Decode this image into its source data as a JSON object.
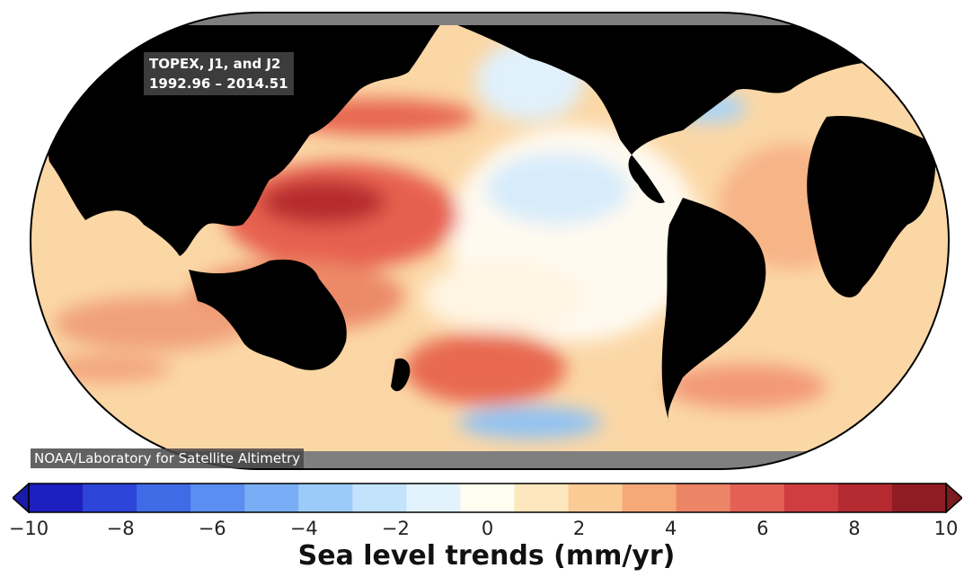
{
  "map": {
    "projection": "robinson-pacific-centered",
    "land_color": "#000000",
    "polar_cap_color": "#7f7f7f",
    "dataset_label_line1": "TOPEX, J1, and J2",
    "dataset_label_line2": "1992.96 – 2014.51",
    "credit": "NOAA/Laboratory for Satellite Altimetry"
  },
  "colorbar": {
    "title": "Sea level trends (mm/yr)",
    "ticks": [
      "−10",
      "−8",
      "−6",
      "−4",
      "−2",
      "0",
      "2",
      "4",
      "6",
      "8",
      "10"
    ],
    "tick_values": [
      -10,
      -8,
      -6,
      -4,
      -2,
      0,
      2,
      4,
      6,
      8,
      10
    ],
    "range": [
      -10,
      10
    ],
    "extend": "both",
    "colors": [
      "#1d1fc0",
      "#2d44d8",
      "#3f6be6",
      "#5a8ef0",
      "#79aef6",
      "#9dcbf9",
      "#c2e3fb",
      "#e2f3fd",
      "#fffdf0",
      "#fde7bd",
      "#fbcb95",
      "#f5a878",
      "#ec8466",
      "#e26054",
      "#cf3d40",
      "#b42a30",
      "#8e1c22"
    ],
    "under_color": "#1a1aa8",
    "over_color": "#7a1c20"
  }
}
